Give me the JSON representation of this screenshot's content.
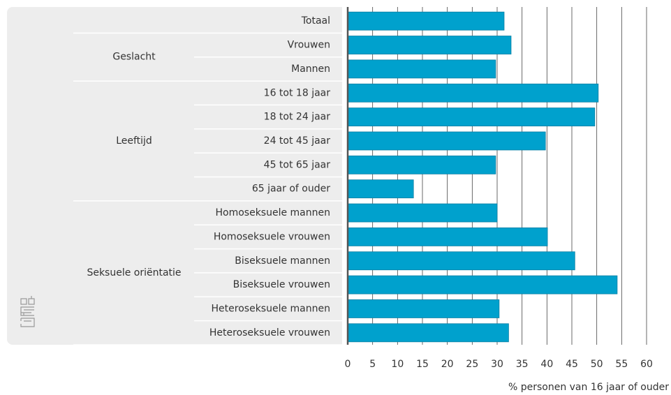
{
  "chart_data": {
    "type": "hbar",
    "categories": [
      "Totaal",
      "Vrouwen",
      "Mannen",
      "16 tot 18 jaar",
      "18 tot 24 jaar",
      "24 tot 45 jaar",
      "45 tot 65 jaar",
      "65 jaar of ouder",
      "Homoseksuele mannen",
      "Homoseksuele vrouwen",
      "Biseksuele mannen",
      "Biseksuele vrouwen",
      "Heteroseksuele mannen",
      "Heteroseksuele vrouwen"
    ],
    "groups": [
      {
        "name": "Geslacht",
        "first": 1,
        "last": 2
      },
      {
        "name": "Leeftijd",
        "first": 3,
        "last": 7
      },
      {
        "name": "Seksuele oriëntatie",
        "first": 8,
        "last": 13
      }
    ],
    "values": [
      31.4,
      32.8,
      29.7,
      50.3,
      49.6,
      39.7,
      29.7,
      13.2,
      30.0,
      40.1,
      45.6,
      54.1,
      30.4,
      32.3
    ],
    "color": "#00a1cd",
    "xlim": [
      0,
      60
    ],
    "xticks": [
      0,
      5,
      10,
      15,
      20,
      25,
      30,
      35,
      40,
      45,
      50,
      55,
      60
    ],
    "xlabel": "% personen van 16 jaar of ouder",
    "grid": true
  }
}
